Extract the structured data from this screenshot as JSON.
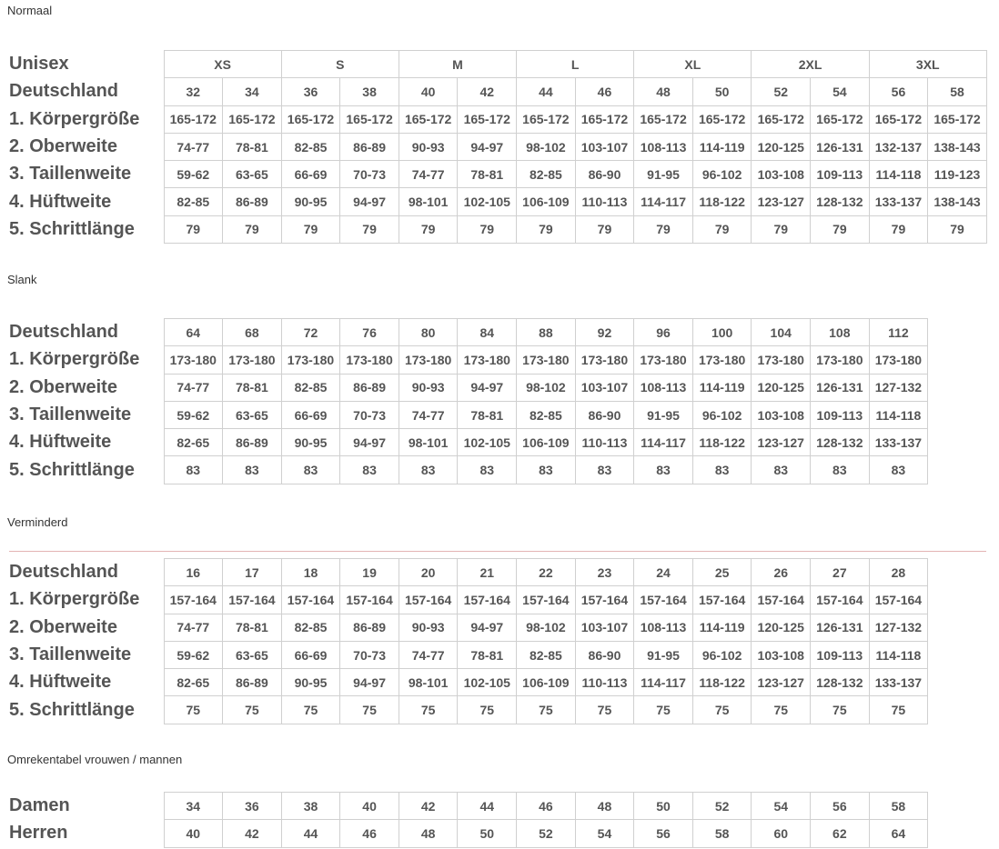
{
  "sections": [
    {
      "title": "Normaal",
      "group_row": {
        "label": "Unisex",
        "cells": [
          "XS",
          "S",
          "M",
          "L",
          "XL",
          "2XL",
          "3XL"
        ]
      },
      "rows": [
        {
          "label": "Deutschland",
          "cells": [
            32,
            34,
            36,
            38,
            40,
            42,
            44,
            46,
            48,
            50,
            52,
            54,
            56,
            58
          ]
        },
        {
          "label": "1. Körpergröße",
          "cells": [
            "165-172",
            "165-172",
            "165-172",
            "165-172",
            "165-172",
            "165-172",
            "165-172",
            "165-172",
            "165-172",
            "165-172",
            "165-172",
            "165-172",
            "165-172",
            "165-172"
          ]
        },
        {
          "label": "2. Oberweite",
          "cells": [
            "74-77",
            "78-81",
            "82-85",
            "86-89",
            "90-93",
            "94-97",
            "98-102",
            "103-107",
            "108-113",
            "114-119",
            "120-125",
            "126-131",
            "132-137",
            "138-143"
          ]
        },
        {
          "label": "3. Taillenweite",
          "cells": [
            "59-62",
            "63-65",
            "66-69",
            "70-73",
            "74-77",
            "78-81",
            "82-85",
            "86-90",
            "91-95",
            "96-102",
            "103-108",
            "109-113",
            "114-118",
            "119-123"
          ]
        },
        {
          "label": "4. Hüftweite",
          "cells": [
            "82-85",
            "86-89",
            "90-95",
            "94-97",
            "98-101",
            "102-105",
            "106-109",
            "110-113",
            "114-117",
            "118-122",
            "123-127",
            "128-132",
            "133-137",
            "138-143"
          ]
        },
        {
          "label": "5. Schrittlänge",
          "cells": [
            79,
            79,
            79,
            79,
            79,
            79,
            79,
            79,
            79,
            79,
            79,
            79,
            79,
            79
          ]
        }
      ]
    },
    {
      "title": "Slank",
      "rows": [
        {
          "label": "Deutschland",
          "cells": [
            64,
            68,
            72,
            76,
            80,
            84,
            88,
            92,
            96,
            100,
            104,
            108,
            112
          ]
        },
        {
          "label": "1. Körpergröße",
          "cells": [
            "173-180",
            "173-180",
            "173-180",
            "173-180",
            "173-180",
            "173-180",
            "173-180",
            "173-180",
            "173-180",
            "173-180",
            "173-180",
            "173-180",
            "173-180"
          ]
        },
        {
          "label": "2. Oberweite",
          "cells": [
            "74-77",
            "78-81",
            "82-85",
            "86-89",
            "90-93",
            "94-97",
            "98-102",
            "103-107",
            "108-113",
            "114-119",
            "120-125",
            "126-131",
            "127-132"
          ]
        },
        {
          "label": "3. Taillenweite",
          "cells": [
            "59-62",
            "63-65",
            "66-69",
            "70-73",
            "74-77",
            "78-81",
            "82-85",
            "86-90",
            "91-95",
            "96-102",
            "103-108",
            "109-113",
            "114-118"
          ]
        },
        {
          "label": "4. Hüftweite",
          "cells": [
            "82-65",
            "86-89",
            "90-95",
            "94-97",
            "98-101",
            "102-105",
            "106-109",
            "110-113",
            "114-117",
            "118-122",
            "123-127",
            "128-132",
            "133-137"
          ]
        },
        {
          "label": "5. Schrittlänge",
          "cells": [
            83,
            83,
            83,
            83,
            83,
            83,
            83,
            83,
            83,
            83,
            83,
            83,
            83
          ]
        }
      ]
    },
    {
      "title": "Verminderd",
      "rows": [
        {
          "label": "Deutschland",
          "cells": [
            16,
            17,
            18,
            19,
            20,
            21,
            22,
            23,
            24,
            25,
            26,
            27,
            28
          ]
        },
        {
          "label": "1. Körpergröße",
          "cells": [
            "157-164",
            "157-164",
            "157-164",
            "157-164",
            "157-164",
            "157-164",
            "157-164",
            "157-164",
            "157-164",
            "157-164",
            "157-164",
            "157-164",
            "157-164"
          ]
        },
        {
          "label": "2. Oberweite",
          "cells": [
            "74-77",
            "78-81",
            "82-85",
            "86-89",
            "90-93",
            "94-97",
            "98-102",
            "103-107",
            "108-113",
            "114-119",
            "120-125",
            "126-131",
            "127-132"
          ]
        },
        {
          "label": "3. Taillenweite",
          "cells": [
            "59-62",
            "63-65",
            "66-69",
            "70-73",
            "74-77",
            "78-81",
            "82-85",
            "86-90",
            "91-95",
            "96-102",
            "103-108",
            "109-113",
            "114-118"
          ]
        },
        {
          "label": "4. Hüftweite",
          "cells": [
            "82-65",
            "86-89",
            "90-95",
            "94-97",
            "98-101",
            "102-105",
            "106-109",
            "110-113",
            "114-117",
            "118-122",
            "123-127",
            "128-132",
            "133-137"
          ]
        },
        {
          "label": "5. Schrittlänge",
          "cells": [
            75,
            75,
            75,
            75,
            75,
            75,
            75,
            75,
            75,
            75,
            75,
            75,
            75
          ]
        }
      ]
    },
    {
      "title": "Omrekentabel vrouwen / mannen",
      "rows": [
        {
          "label": "Damen",
          "cells": [
            34,
            36,
            38,
            40,
            42,
            44,
            46,
            48,
            50,
            52,
            54,
            56,
            58
          ]
        },
        {
          "label": "Herren",
          "cells": [
            40,
            42,
            44,
            46,
            48,
            50,
            52,
            54,
            56,
            58,
            60,
            62,
            64
          ]
        }
      ]
    }
  ]
}
